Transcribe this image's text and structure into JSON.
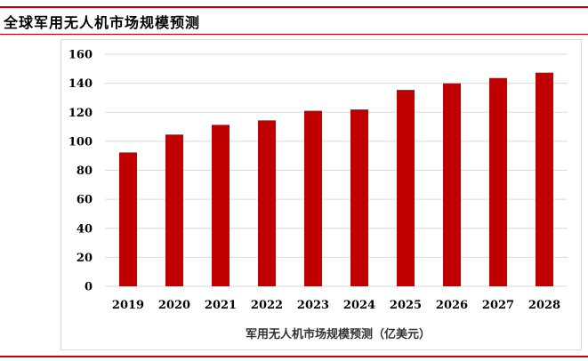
{
  "header": {
    "title": "全球军用无人机市场规模预测"
  },
  "colors": {
    "bar": "#c00000",
    "rule": "#c00000",
    "grid": "#d9d9d9"
  },
  "chart_data": {
    "type": "bar",
    "title": "",
    "xlabel": "军用无人机市场规模预测（亿美元）",
    "ylabel": "",
    "categories": [
      "2019",
      "2020",
      "2021",
      "2022",
      "2023",
      "2024",
      "2025",
      "2026",
      "2027",
      "2028"
    ],
    "series": [
      {
        "values": [
          92.3,
          104.6,
          111.3,
          114.4,
          121.0,
          121.9,
          135.4,
          139.9,
          143.6,
          147.3
        ]
      }
    ],
    "ylim": [
      0,
      160
    ],
    "yticks": [
      0,
      20,
      40,
      60,
      80,
      100,
      120,
      140,
      160
    ],
    "grid": true,
    "legend": "none"
  }
}
